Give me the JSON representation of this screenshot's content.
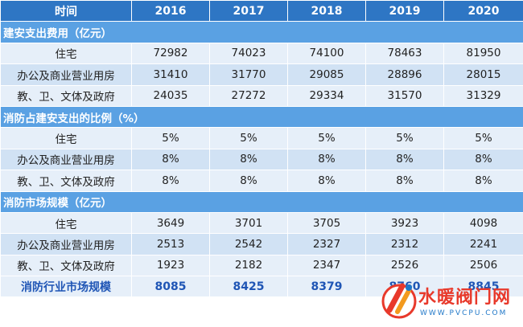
{
  "table": {
    "header": [
      "时间",
      "2016",
      "2017",
      "2018",
      "2019",
      "2020"
    ],
    "sections": [
      {
        "title": "建安支出费用（亿元）",
        "rows": [
          {
            "label": "住宅",
            "values": [
              "72982",
              "74023",
              "74100",
              "78463",
              "81950"
            ]
          },
          {
            "label": "办公及商业营业用房",
            "values": [
              "31410",
              "31770",
              "29085",
              "28896",
              "28015"
            ]
          },
          {
            "label": "教、卫、文体及政府",
            "values": [
              "24035",
              "27272",
              "29334",
              "31570",
              "31329"
            ]
          }
        ]
      },
      {
        "title": "消防占建安支出的比例（%）",
        "rows": [
          {
            "label": "住宅",
            "values": [
              "5%",
              "5%",
              "5%",
              "5%",
              "5%"
            ]
          },
          {
            "label": "办公及商业营业用房",
            "values": [
              "8%",
              "8%",
              "8%",
              "8%",
              "8%"
            ]
          },
          {
            "label": "教、卫、文体及政府",
            "values": [
              "8%",
              "8%",
              "8%",
              "8%",
              "8%"
            ]
          }
        ]
      },
      {
        "title": "消防市场规模（亿元）",
        "rows": [
          {
            "label": "住宅",
            "values": [
              "3649",
              "3701",
              "3705",
              "3923",
              "4098"
            ]
          },
          {
            "label": "办公及商业营业用房",
            "values": [
              "2513",
              "2542",
              "2327",
              "2312",
              "2241"
            ]
          },
          {
            "label": "教、卫、文体及政府",
            "values": [
              "1923",
              "2182",
              "2347",
              "2526",
              "2506"
            ]
          }
        ]
      }
    ],
    "total": {
      "label": "消防行业市场规模",
      "values": [
        "8085",
        "8425",
        "8379",
        "8760",
        "8845"
      ]
    }
  },
  "watermark": {
    "logo_letters": "PV",
    "title": "水暖阀门网",
    "url": "WWW.PVCPU.COM"
  },
  "colors": {
    "header_bg": "#2e76c4",
    "section_bg": "#5aa1e3",
    "row_light": "#e6eff9",
    "row_dark": "#d1e2f4",
    "total_text": "#1f55b5",
    "watermark_red": "#e8392b"
  }
}
